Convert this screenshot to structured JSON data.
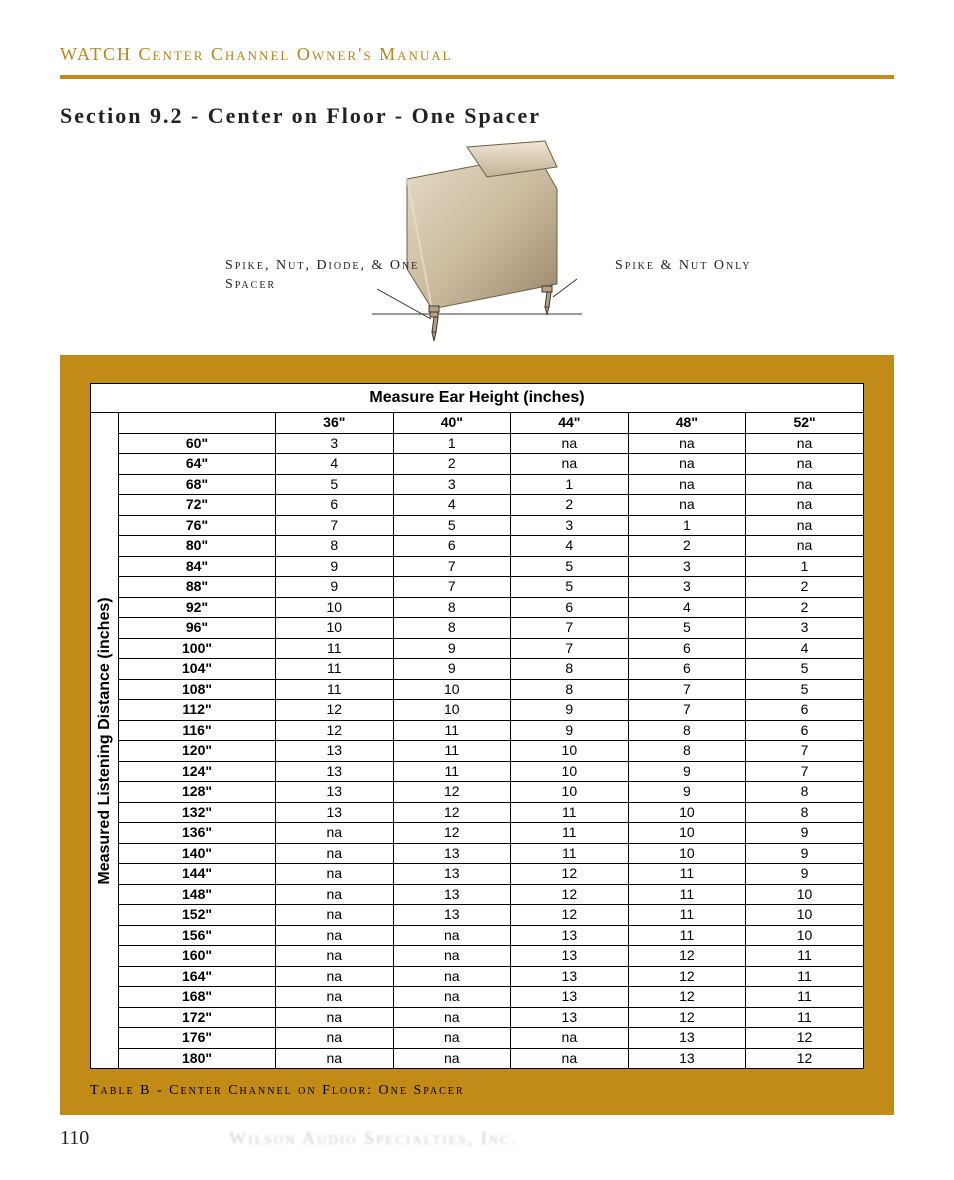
{
  "header": {
    "running_head": "WATCH Center Channel Owner's Manual"
  },
  "section": {
    "title": "Section 9.2 - Center on Floor - One Spacer"
  },
  "figure": {
    "left_label": "Spike, Nut, Diode, & One Spacer",
    "right_label": "Spike & Nut Only",
    "colors": {
      "body_light": "#d9cab3",
      "body_mid": "#b7a184",
      "body_dark": "#8f7a5e",
      "line": "#3a352c",
      "shadow": "#7a6a4f"
    }
  },
  "table": {
    "top_title": "Measure Ear Height (inches)",
    "side_title": "Measured Listening Distance (inches)",
    "column_heads": [
      "36\"",
      "40\"",
      "44\"",
      "48\"",
      "52\""
    ],
    "row_heads": [
      "60\"",
      "64\"",
      "68\"",
      "72\"",
      "76\"",
      "80\"",
      "84\"",
      "88\"",
      "92\"",
      "96\"",
      "100\"",
      "104\"",
      "108\"",
      "112\"",
      "116\"",
      "120\"",
      "124\"",
      "128\"",
      "132\"",
      "136\"",
      "140\"",
      "144\"",
      "148\"",
      "152\"",
      "156\"",
      "160\"",
      "164\"",
      "168\"",
      "172\"",
      "176\"",
      "180\""
    ],
    "rows": [
      [
        "3",
        "1",
        "na",
        "na",
        "na"
      ],
      [
        "4",
        "2",
        "na",
        "na",
        "na"
      ],
      [
        "5",
        "3",
        "1",
        "na",
        "na"
      ],
      [
        "6",
        "4",
        "2",
        "na",
        "na"
      ],
      [
        "7",
        "5",
        "3",
        "1",
        "na"
      ],
      [
        "8",
        "6",
        "4",
        "2",
        "na"
      ],
      [
        "9",
        "7",
        "5",
        "3",
        "1"
      ],
      [
        "9",
        "7",
        "5",
        "3",
        "2"
      ],
      [
        "10",
        "8",
        "6",
        "4",
        "2"
      ],
      [
        "10",
        "8",
        "7",
        "5",
        "3"
      ],
      [
        "11",
        "9",
        "7",
        "6",
        "4"
      ],
      [
        "11",
        "9",
        "8",
        "6",
        "5"
      ],
      [
        "11",
        "10",
        "8",
        "7",
        "5"
      ],
      [
        "12",
        "10",
        "9",
        "7",
        "6"
      ],
      [
        "12",
        "11",
        "9",
        "8",
        "6"
      ],
      [
        "13",
        "11",
        "10",
        "8",
        "7"
      ],
      [
        "13",
        "11",
        "10",
        "9",
        "7"
      ],
      [
        "13",
        "12",
        "10",
        "9",
        "8"
      ],
      [
        "13",
        "12",
        "11",
        "10",
        "8"
      ],
      [
        "na",
        "12",
        "11",
        "10",
        "9"
      ],
      [
        "na",
        "13",
        "11",
        "10",
        "9"
      ],
      [
        "na",
        "13",
        "12",
        "11",
        "9"
      ],
      [
        "na",
        "13",
        "12",
        "11",
        "10"
      ],
      [
        "na",
        "13",
        "12",
        "11",
        "10"
      ],
      [
        "na",
        "na",
        "13",
        "11",
        "10"
      ],
      [
        "na",
        "na",
        "13",
        "12",
        "11"
      ],
      [
        "na",
        "na",
        "13",
        "12",
        "11"
      ],
      [
        "na",
        "na",
        "13",
        "12",
        "11"
      ],
      [
        "na",
        "na",
        "13",
        "12",
        "11"
      ],
      [
        "na",
        "na",
        "na",
        "13",
        "12"
      ],
      [
        "na",
        "na",
        "na",
        "13",
        "12"
      ]
    ],
    "caption": "Table B - Center Channel on Floor: One Spacer",
    "colors": {
      "panel_bg": "#c28a16",
      "cell_border": "#000000",
      "cell_bg": "#ffffff"
    },
    "font_size_pt": 10
  },
  "footer": {
    "page_number": "110",
    "company": "Wilson Audio Specialties, Inc."
  }
}
